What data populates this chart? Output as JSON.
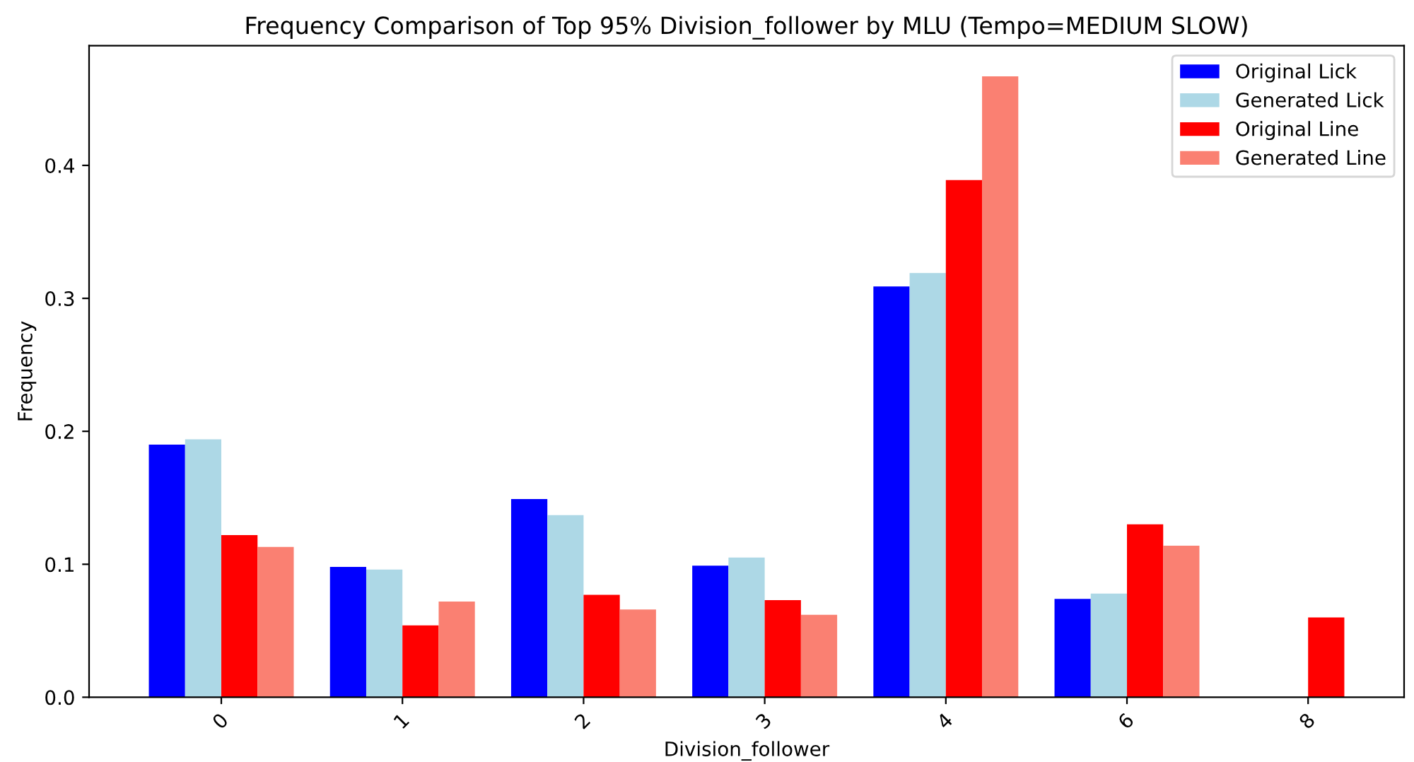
{
  "chart_data": {
    "type": "bar",
    "title": "Frequency Comparison of Top 95% Division_follower by MLU (Tempo=MEDIUM SLOW)",
    "xlabel": "Division_follower",
    "ylabel": "Frequency",
    "categories": [
      "0",
      "1",
      "2",
      "3",
      "4",
      "6",
      "8"
    ],
    "series": [
      {
        "name": "Original Lick",
        "color": "#0000ff",
        "values": [
          0.19,
          0.098,
          0.149,
          0.099,
          0.309,
          0.074,
          null
        ]
      },
      {
        "name": "Generated Lick",
        "color": "#add8e6",
        "values": [
          0.194,
          0.096,
          0.137,
          0.105,
          0.319,
          0.078,
          null
        ]
      },
      {
        "name": "Original Line",
        "color": "#ff0000",
        "values": [
          0.122,
          0.054,
          0.077,
          0.073,
          0.389,
          0.13,
          0.06
        ]
      },
      {
        "name": "Generated Line",
        "color": "#fa8072",
        "values": [
          0.113,
          0.072,
          0.066,
          0.062,
          0.467,
          0.114,
          null
        ]
      }
    ],
    "ylim": [
      0,
      0.49
    ],
    "yticks": [
      {
        "value": 0,
        "label": "0.0"
      },
      0.1,
      0.2,
      0.3,
      0.4
    ],
    "legend": "top right",
    "grid": false
  }
}
